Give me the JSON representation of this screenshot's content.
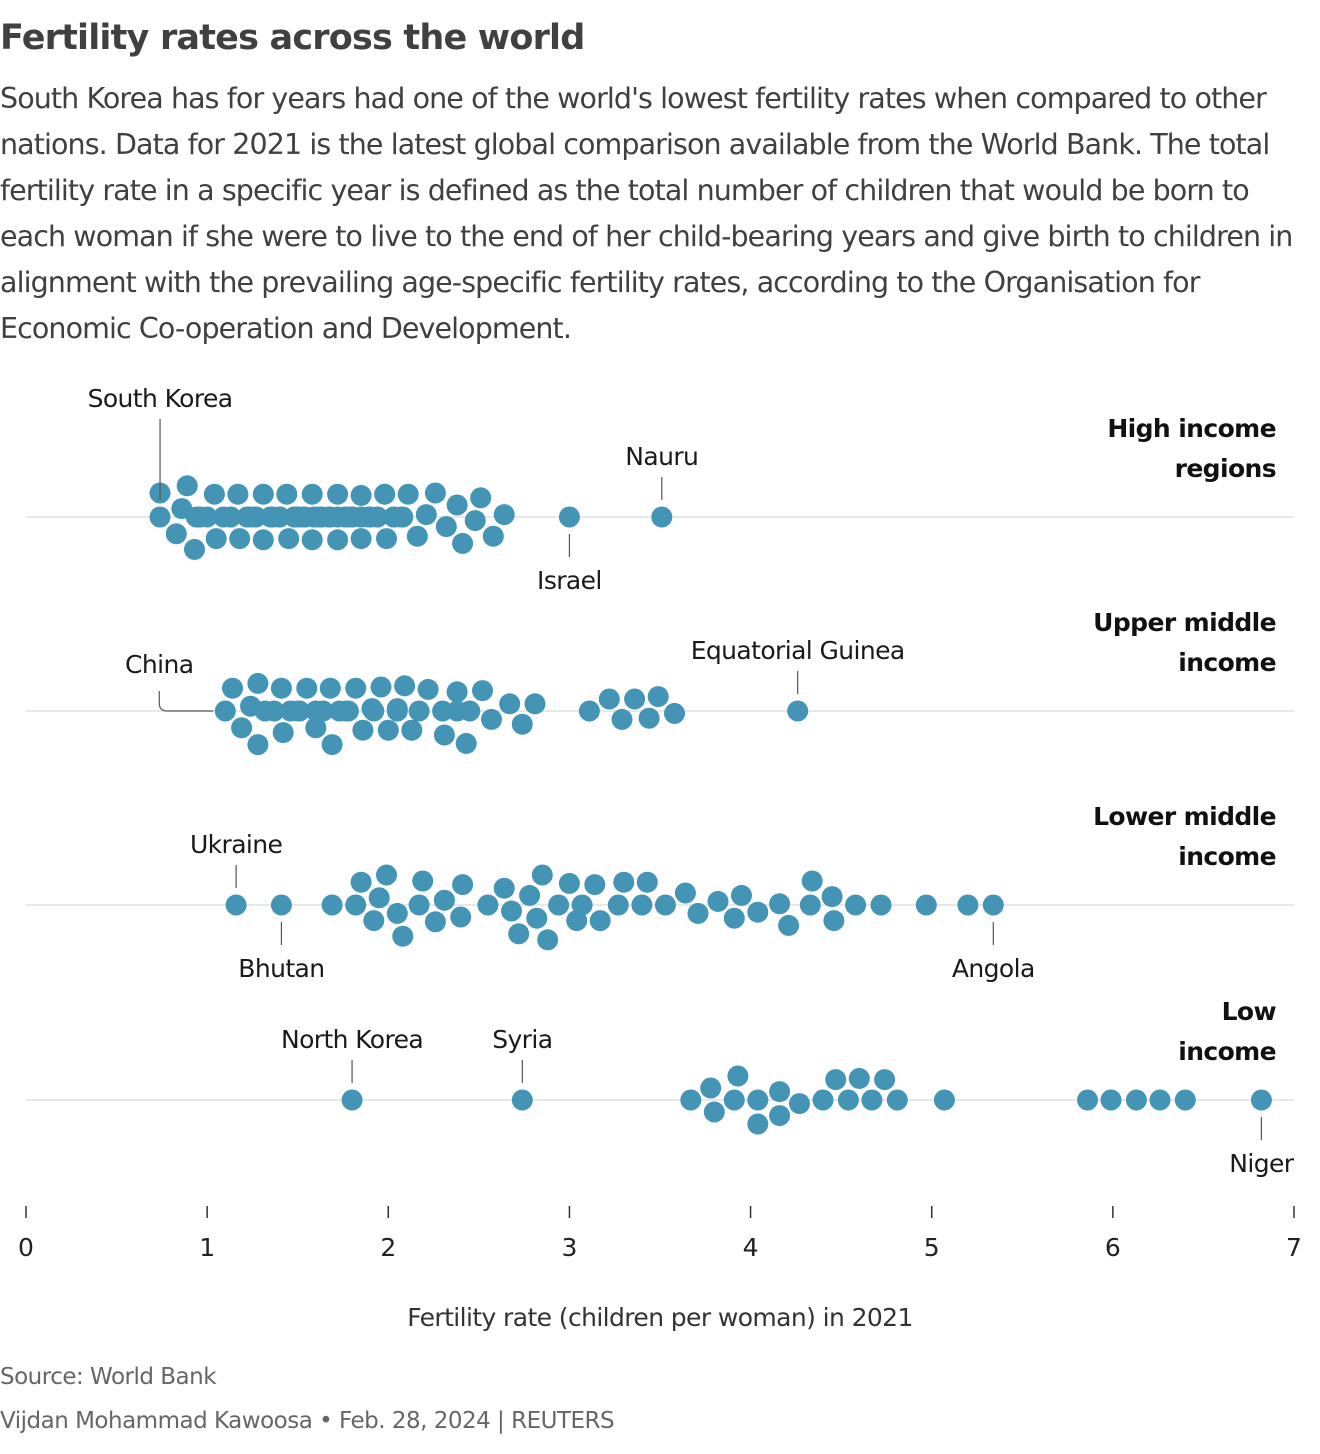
{
  "header": {
    "title": "Fertility rates across the world",
    "subtitle": "South Korea has for years had one of the world's lowest fertility rates when compared to other nations. Data for 2021 is the latest global comparison available from the World Bank. The total fertility rate in a specific year is defined as the total number of children that would be born to each woman if she were to live to the end of her child-bearing years and give birth to children in alignment with the prevailing age-specific fertility rates, according to the Organisation for Economic Co-operation and Development."
  },
  "footer": {
    "source": "Source: World Bank",
    "credit": "Vijdan Mohammad Kawoosa • Feb. 28, 2024 | REUTERS"
  },
  "colors": {
    "dot": "#4394b5",
    "gridline": "#d9d9d9",
    "label": "#1a1a1a",
    "axis": "#333333"
  },
  "chart_data": {
    "type": "scatter",
    "subtype": "beeswarm",
    "title": "Fertility rates across the world",
    "xlabel": "Fertility rate (children per woman) in 2021",
    "ylabel": "",
    "xlim": [
      0,
      7
    ],
    "xticks": [
      0,
      1,
      2,
      3,
      4,
      5,
      6,
      7
    ],
    "xtick_labels": [
      "0",
      "1",
      "2",
      "3",
      "4",
      "5",
      "6",
      "7"
    ],
    "grid": false,
    "series": [
      {
        "name": "High income regions",
        "label_lines": [
          "High income",
          "regions"
        ],
        "values": [
          0.74,
          0.74,
          0.83,
          0.86,
          0.89,
          0.93,
          0.94,
          0.96,
          1.0,
          1.04,
          1.05,
          1.09,
          1.13,
          1.13,
          1.17,
          1.18,
          1.22,
          1.23,
          1.26,
          1.27,
          1.31,
          1.31,
          1.35,
          1.36,
          1.36,
          1.4,
          1.4,
          1.44,
          1.45,
          1.48,
          1.5,
          1.5,
          1.53,
          1.54,
          1.58,
          1.58,
          1.59,
          1.62,
          1.63,
          1.63,
          1.67,
          1.68,
          1.72,
          1.72,
          1.72,
          1.76,
          1.77,
          1.8,
          1.8,
          1.85,
          1.85,
          1.85,
          1.89,
          1.9,
          1.94,
          1.94,
          1.98,
          1.99,
          2.03,
          2.03,
          2.07,
          2.08,
          2.11,
          2.16,
          2.21,
          2.26,
          2.32,
          2.38,
          2.41,
          2.48,
          2.51,
          2.58,
          2.64,
          3.0,
          3.51
        ],
        "annotations": [
          {
            "label": "South Korea",
            "value": 0.74,
            "position": "above"
          },
          {
            "label": "Israel",
            "value": 3.0,
            "position": "below"
          },
          {
            "label": "Nauru",
            "value": 3.51,
            "position": "above"
          }
        ]
      },
      {
        "name": "Upper middle income",
        "label_lines": [
          "Upper middle",
          "income"
        ],
        "values": [
          1.1,
          1.14,
          1.19,
          1.24,
          1.28,
          1.28,
          1.32,
          1.37,
          1.41,
          1.42,
          1.46,
          1.5,
          1.51,
          1.55,
          1.6,
          1.6,
          1.64,
          1.68,
          1.69,
          1.73,
          1.77,
          1.78,
          1.82,
          1.86,
          1.91,
          1.92,
          1.96,
          2.0,
          2.05,
          2.05,
          2.09,
          2.13,
          2.17,
          2.22,
          2.3,
          2.31,
          2.38,
          2.38,
          2.43,
          2.45,
          2.52,
          2.57,
          2.67,
          2.74,
          2.81,
          3.11,
          3.22,
          3.29,
          3.36,
          3.44,
          3.49,
          3.58,
          4.26
        ],
        "annotations": [
          {
            "label": "China",
            "value": 1.1,
            "position": "above-left"
          },
          {
            "label": "Equatorial Guinea",
            "value": 4.26,
            "position": "above"
          }
        ]
      },
      {
        "name": "Lower middle income",
        "label_lines": [
          "Lower middle",
          "income"
        ],
        "values": [
          1.16,
          1.41,
          1.69,
          1.82,
          1.85,
          1.92,
          1.95,
          1.99,
          2.05,
          2.08,
          2.17,
          2.19,
          2.26,
          2.31,
          2.4,
          2.41,
          2.55,
          2.64,
          2.68,
          2.72,
          2.78,
          2.82,
          2.85,
          2.88,
          2.94,
          3.0,
          3.04,
          3.07,
          3.14,
          3.17,
          3.27,
          3.3,
          3.4,
          3.43,
          3.53,
          3.64,
          3.71,
          3.82,
          3.91,
          3.95,
          4.04,
          4.16,
          4.21,
          4.33,
          4.34,
          4.45,
          4.46,
          4.58,
          4.72,
          4.97,
          5.2,
          5.34
        ],
        "annotations": [
          {
            "label": "Ukraine",
            "value": 1.16,
            "position": "above"
          },
          {
            "label": "Bhutan",
            "value": 1.41,
            "position": "below"
          },
          {
            "label": "Angola",
            "value": 5.34,
            "position": "below"
          }
        ]
      },
      {
        "name": "Low income",
        "label_lines": [
          "Low",
          "income"
        ],
        "values": [
          1.8,
          2.74,
          3.67,
          3.78,
          3.8,
          3.91,
          3.93,
          4.04,
          4.04,
          4.16,
          4.16,
          4.27,
          4.4,
          4.47,
          4.54,
          4.6,
          4.67,
          4.74,
          4.81,
          5.07,
          5.86,
          5.99,
          6.13,
          6.26,
          6.4,
          6.82
        ],
        "annotations": [
          {
            "label": "North Korea",
            "value": 1.8,
            "position": "above"
          },
          {
            "label": "Syria",
            "value": 2.74,
            "position": "above"
          },
          {
            "label": "Niger",
            "value": 6.82,
            "position": "below"
          }
        ]
      }
    ]
  }
}
